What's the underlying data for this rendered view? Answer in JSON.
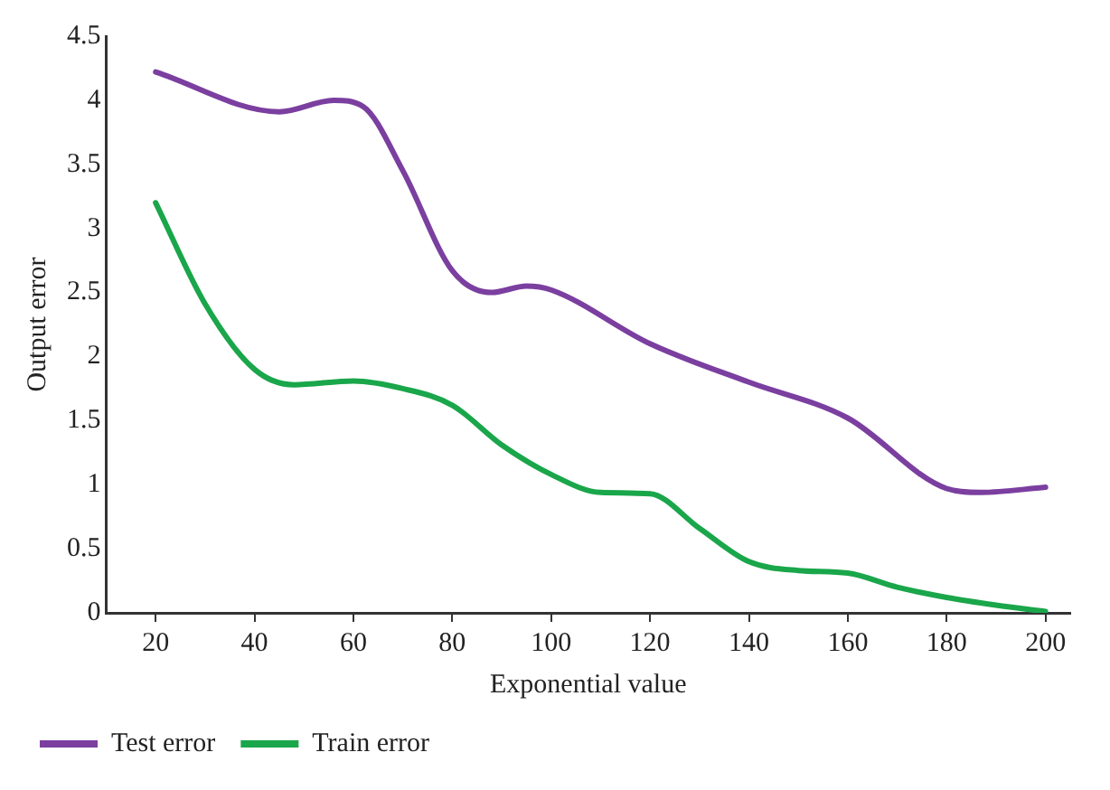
{
  "chart_data": {
    "type": "line",
    "xlabel": "Exponential value",
    "ylabel": "Output error",
    "xlim": [
      10,
      205
    ],
    "xticks": [
      20,
      40,
      60,
      80,
      100,
      120,
      140,
      160,
      180,
      200
    ],
    "ylim": [
      0,
      4.5
    ],
    "yticks": [
      0,
      0.5,
      1,
      1.5,
      2,
      2.5,
      3,
      3.5,
      4,
      4.5
    ],
    "grid": false,
    "legend": "bottom left",
    "marker": "none",
    "line_style": "solid",
    "series": [
      {
        "name": "Test error",
        "color": "#7b3fa0",
        "x": [
          20,
          45,
          56,
          62,
          70,
          80,
          88,
          95,
          100,
          120,
          140,
          160,
          180,
          187,
          200
        ],
        "values": [
          4.22,
          3.91,
          4.0,
          3.95,
          3.45,
          2.67,
          2.5,
          2.55,
          2.52,
          2.1,
          1.8,
          1.52,
          0.97,
          0.94,
          0.98
        ]
      },
      {
        "name": "Train error",
        "color": "#1aa64a",
        "x": [
          20,
          30,
          40,
          48,
          60,
          70,
          80,
          90,
          100,
          110,
          120,
          130,
          140,
          150,
          160,
          170,
          180,
          190,
          200
        ],
        "values": [
          3.2,
          2.41,
          1.9,
          1.78,
          1.81,
          1.75,
          1.62,
          1.31,
          1.08,
          0.94,
          0.93,
          0.66,
          0.4,
          0.33,
          0.31,
          0.2,
          0.12,
          0.06,
          0.01
        ]
      }
    ]
  }
}
